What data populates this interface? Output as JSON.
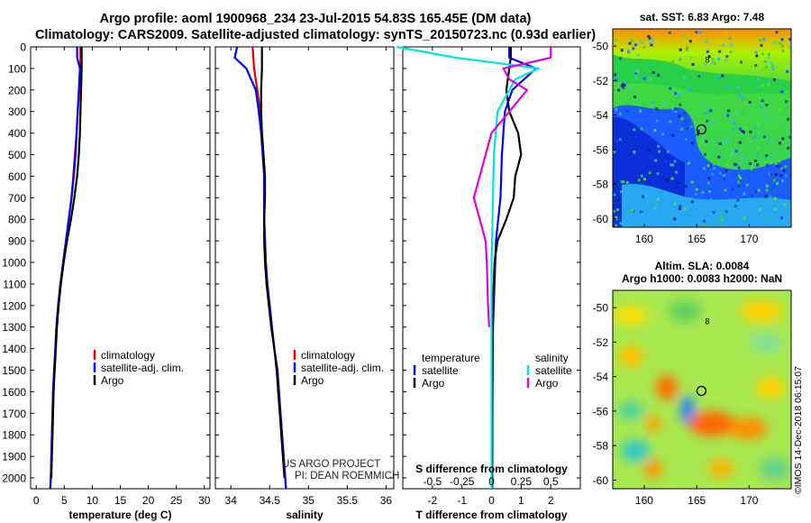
{
  "title": {
    "line1": "Argo profile: aoml 1900968_234 23-Jul-2015 54.83S 165.45E (DM data)",
    "line2": "Climatology: CARS2009. Satellite-adjusted climatology: synTS_20150723.nc (0.93d earlier)"
  },
  "credits": {
    "project": "US ARGO PROJECT",
    "pi": "PI: DEAN ROEMMICH"
  },
  "watermark": "©IMOS 14-Dec-2018 06:15:07",
  "colors": {
    "climatology": "#e00000",
    "satellite": "#0000ff",
    "argo": "#000000",
    "sat_salinity": "#00e5e5",
    "argo_salinity": "#e000e0"
  },
  "chart_data": [
    {
      "type": "line",
      "id": "temperature",
      "xlabel": "temperature (deg C)",
      "ylabel": "",
      "xlim": [
        -1,
        31
      ],
      "ylim": [
        2050,
        0
      ],
      "xticks": [
        "0",
        "5",
        "10",
        "15",
        "20",
        "25",
        "30"
      ],
      "yticks": [
        "0",
        "100",
        "200",
        "300",
        "400",
        "500",
        "600",
        "700",
        "800",
        "900",
        "1000",
        "1100",
        "1200",
        "1300",
        "1400",
        "1500",
        "1600",
        "1700",
        "1800",
        "1900",
        "2000"
      ],
      "legend": [
        "climatology",
        "satellite-adj. clim.",
        "Argo"
      ],
      "series": [
        {
          "name": "climatology",
          "points": [
            [
              7.9,
              0
            ],
            [
              7.9,
              100
            ],
            [
              7.7,
              200
            ],
            [
              7.4,
              300
            ],
            [
              7.2,
              400
            ],
            [
              6.9,
              500
            ],
            [
              6.6,
              600
            ],
            [
              6.3,
              700
            ],
            [
              5.8,
              800
            ],
            [
              5.3,
              900
            ],
            [
              4.8,
              1000
            ],
            [
              4.3,
              1100
            ],
            [
              3.9,
              1200
            ],
            [
              3.6,
              1300
            ],
            [
              3.4,
              1400
            ],
            [
              3.2,
              1500
            ],
            [
              3.0,
              1600
            ],
            [
              2.9,
              1700
            ],
            [
              2.8,
              1800
            ],
            [
              2.7,
              1900
            ],
            [
              2.6,
              2000
            ],
            [
              2.5,
              2050
            ]
          ]
        },
        {
          "name": "satellite-adj. clim.",
          "points": [
            [
              7.3,
              0
            ],
            [
              7.3,
              50
            ],
            [
              7.8,
              100
            ],
            [
              7.6,
              200
            ],
            [
              7.4,
              300
            ],
            [
              7.2,
              400
            ],
            [
              7.0,
              500
            ],
            [
              6.7,
              600
            ],
            [
              6.3,
              700
            ],
            [
              5.8,
              800
            ],
            [
              5.3,
              900
            ],
            [
              4.8,
              1000
            ],
            [
              4.3,
              1100
            ],
            [
              3.9,
              1200
            ],
            [
              3.6,
              1300
            ],
            [
              3.4,
              1400
            ],
            [
              3.2,
              1500
            ],
            [
              3.0,
              1600
            ],
            [
              2.9,
              1700
            ],
            [
              2.8,
              1800
            ],
            [
              2.7,
              1900
            ],
            [
              2.6,
              2000
            ],
            [
              2.5,
              2050
            ]
          ]
        },
        {
          "name": "Argo",
          "points": [
            [
              8.1,
              0
            ],
            [
              8.1,
              100
            ],
            [
              8.0,
              200
            ],
            [
              7.9,
              300
            ],
            [
              7.8,
              400
            ],
            [
              7.6,
              500
            ],
            [
              7.3,
              600
            ],
            [
              6.8,
              700
            ],
            [
              6.2,
              800
            ],
            [
              5.5,
              900
            ],
            [
              4.9,
              1000
            ],
            [
              4.4,
              1100
            ],
            [
              4.0,
              1200
            ],
            [
              3.7,
              1300
            ],
            [
              3.5,
              1400
            ],
            [
              3.3,
              1500
            ],
            [
              3.1,
              1600
            ],
            [
              3.0,
              1700
            ],
            [
              2.9,
              1800
            ],
            [
              2.8,
              1900
            ],
            [
              2.7,
              2000
            ]
          ]
        }
      ]
    },
    {
      "type": "line",
      "id": "salinity",
      "xlabel": "salinity",
      "ylabel": "",
      "xlim": [
        33.8,
        36.1
      ],
      "ylim": [
        2050,
        0
      ],
      "xticks": [
        "34",
        "34.5",
        "35",
        "35.5",
        "36"
      ],
      "legend": [
        "climatology",
        "satellite-adj. clim.",
        "Argo"
      ],
      "series": [
        {
          "name": "climatology",
          "points": [
            [
              34.28,
              0
            ],
            [
              34.3,
              100
            ],
            [
              34.34,
              200
            ],
            [
              34.38,
              300
            ],
            [
              34.4,
              400
            ],
            [
              34.42,
              500
            ],
            [
              34.43,
              600
            ],
            [
              34.43,
              700
            ],
            [
              34.43,
              800
            ],
            [
              34.44,
              900
            ],
            [
              34.45,
              1000
            ],
            [
              34.47,
              1100
            ],
            [
              34.5,
              1200
            ],
            [
              34.53,
              1300
            ],
            [
              34.56,
              1400
            ],
            [
              34.6,
              1500
            ],
            [
              34.62,
              1600
            ],
            [
              34.64,
              1700
            ],
            [
              34.66,
              1800
            ],
            [
              34.68,
              1900
            ],
            [
              34.7,
              2000
            ],
            [
              34.71,
              2050
            ]
          ]
        },
        {
          "name": "satellite-adj. clim.",
          "points": [
            [
              34.08,
              0
            ],
            [
              34.05,
              50
            ],
            [
              34.2,
              100
            ],
            [
              34.32,
              200
            ],
            [
              34.36,
              300
            ],
            [
              34.39,
              400
            ],
            [
              34.41,
              500
            ],
            [
              34.43,
              600
            ],
            [
              34.43,
              700
            ],
            [
              34.43,
              800
            ],
            [
              34.44,
              900
            ],
            [
              34.45,
              1000
            ],
            [
              34.47,
              1100
            ],
            [
              34.5,
              1200
            ],
            [
              34.53,
              1300
            ],
            [
              34.56,
              1400
            ],
            [
              34.6,
              1500
            ],
            [
              34.62,
              1600
            ],
            [
              34.64,
              1700
            ],
            [
              34.66,
              1800
            ],
            [
              34.68,
              1900
            ],
            [
              34.7,
              2000
            ],
            [
              34.71,
              2050
            ]
          ]
        },
        {
          "name": "Argo",
          "points": [
            [
              34.4,
              0
            ],
            [
              34.4,
              100
            ],
            [
              34.39,
              200
            ],
            [
              34.39,
              300
            ],
            [
              34.4,
              400
            ],
            [
              34.42,
              500
            ],
            [
              34.44,
              600
            ],
            [
              34.44,
              700
            ],
            [
              34.43,
              800
            ],
            [
              34.43,
              900
            ],
            [
              34.44,
              1000
            ],
            [
              34.46,
              1100
            ],
            [
              34.49,
              1200
            ],
            [
              34.52,
              1300
            ],
            [
              34.56,
              1400
            ],
            [
              34.59,
              1500
            ],
            [
              34.61,
              1600
            ],
            [
              34.63,
              1700
            ],
            [
              34.65,
              1800
            ],
            [
              34.67,
              1900
            ],
            [
              34.69,
              2000
            ]
          ]
        }
      ]
    },
    {
      "type": "line",
      "id": "difference",
      "xlabel": "T difference from climatology",
      "xlabel2": "S difference from climatology",
      "ylabel": "",
      "xlim": [
        -3,
        3
      ],
      "ylim": [
        2050,
        0
      ],
      "xticks": [
        "-2",
        "-1",
        "0",
        "1",
        "2"
      ],
      "xticks2": [
        "-0.5",
        "-0.25",
        "0",
        "0.25",
        "0.5"
      ],
      "legend_groups": {
        "temperature": [
          "satellite",
          "Argo"
        ],
        "salinity": [
          "satellite",
          "Argo"
        ]
      },
      "series": [
        {
          "name": "temperature satellite",
          "points": [
            [
              0.6,
              0
            ],
            [
              0.6,
              50
            ],
            [
              1.5,
              100
            ],
            [
              1.1,
              150
            ],
            [
              0.7,
              200
            ],
            [
              0.45,
              300
            ],
            [
              0.4,
              400
            ],
            [
              0.35,
              500
            ],
            [
              0.3,
              700
            ],
            [
              0.15,
              900
            ],
            [
              0.1,
              1100
            ],
            [
              0.05,
              1300
            ],
            [
              0.03,
              1500
            ],
            [
              0.02,
              2050
            ]
          ]
        },
        {
          "name": "temperature Argo",
          "points": [
            [
              0.65,
              0
            ],
            [
              0.65,
              50
            ],
            [
              0.6,
              100
            ],
            [
              0.5,
              200
            ],
            [
              0.6,
              300
            ],
            [
              0.9,
              400
            ],
            [
              1.0,
              500
            ],
            [
              0.8,
              600
            ],
            [
              0.75,
              700
            ],
            [
              0.5,
              800
            ],
            [
              0.2,
              900
            ],
            [
              0.1,
              1000
            ],
            [
              0.05,
              1200
            ],
            [
              0.04,
              1400
            ],
            [
              0.03,
              1600
            ],
            [
              0.02,
              2050
            ]
          ]
        },
        {
          "name": "salinity satellite",
          "points": [
            [
              -0.8,
              0
            ],
            [
              -0.3,
              50
            ],
            [
              0.4,
              100
            ],
            [
              0.2,
              150
            ],
            [
              0.15,
              200
            ],
            [
              0.05,
              300
            ],
            [
              0.02,
              500
            ],
            [
              0.0,
              1000
            ],
            [
              0.0,
              2050
            ]
          ]
        },
        {
          "name": "salinity Argo",
          "points": [
            [
              0.5,
              0
            ],
            [
              0.5,
              50
            ],
            [
              0.1,
              100
            ],
            [
              0.15,
              150
            ],
            [
              0.3,
              200
            ],
            [
              0.15,
              300
            ],
            [
              0.0,
              400
            ],
            [
              -0.05,
              500
            ],
            [
              -0.1,
              600
            ],
            [
              -0.15,
              700
            ],
            [
              -0.1,
              800
            ],
            [
              -0.05,
              900
            ],
            [
              -0.04,
              1000
            ],
            [
              -0.03,
              1200
            ],
            [
              -0.02,
              1300
            ]
          ]
        }
      ]
    },
    {
      "type": "heatmap",
      "id": "sst-map",
      "title": "sat. SST: 6.83 Argo: 7.48",
      "xlim": [
        157,
        174
      ],
      "ylim": [
        -60.5,
        -49
      ],
      "xticks": [
        "160",
        "165",
        "170"
      ],
      "yticks": [
        "-50",
        "-52",
        "-54",
        "-56",
        "-58",
        "-60"
      ],
      "marker": {
        "lon": 165.45,
        "lat": -54.83
      }
    },
    {
      "type": "heatmap",
      "id": "sla-map",
      "title_line1": "Altim. SLA: 0.0084",
      "title_line2": "Argo h1000: 0.0083 h2000: NaN",
      "xlim": [
        157,
        174
      ],
      "ylim": [
        -60.5,
        -49
      ],
      "xticks": [
        "160",
        "165",
        "170"
      ],
      "yticks": [
        "-50",
        "-52",
        "-54",
        "-56",
        "-58",
        "-60"
      ],
      "marker": {
        "lon": 165.45,
        "lat": -54.83
      }
    }
  ]
}
